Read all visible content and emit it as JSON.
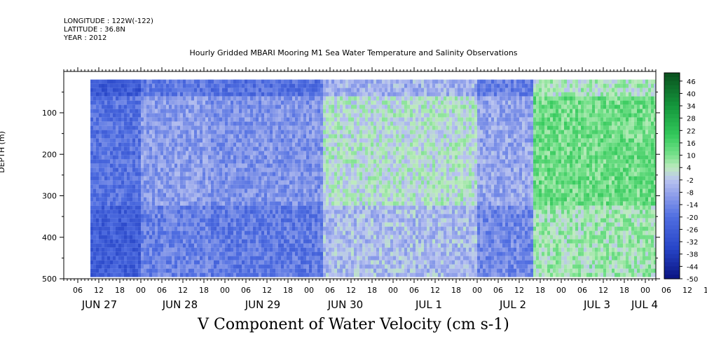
{
  "header": {
    "longitude": "LONGITUDE : 122W(-122)",
    "latitude": "LATITUDE : 36.8N",
    "year": "YEAR : 2012"
  },
  "chart_data": {
    "type": "heatmap",
    "title": "Hourly Gridded MBARI Mooring M1 Sea Water Temperature and Salinity Observations",
    "bottom_title": "V Component of Water Velocity (cm s-1)",
    "ylabel": "DEPTH (m)",
    "y_ticks": [
      100,
      200,
      300,
      400,
      500
    ],
    "ylim": [
      500,
      0
    ],
    "y_reversed": true,
    "x_hour_ticks": [
      "06",
      "12",
      "18",
      "00",
      "06",
      "12",
      "18",
      "00",
      "06",
      "12",
      "18",
      "00",
      "06",
      "12",
      "18",
      "00",
      "06",
      "12",
      "18",
      "00",
      "06",
      "12",
      "18",
      "00",
      "06",
      "12",
      "18",
      "00",
      "06",
      "12",
      "18",
      "00"
    ],
    "x_day_labels": [
      "JUN 27",
      "JUN 28",
      "JUN 29",
      "JUN 30",
      "JUL 1",
      "JUL 2",
      "JUL 3",
      "JUL 4"
    ],
    "x_range_hours": [
      0,
      175
    ],
    "data_depth_range": [
      20,
      490
    ],
    "colorbar_labels": [
      "46",
      "40",
      "34",
      "28",
      "22",
      "16",
      "10",
      "4",
      "-2",
      "-8",
      "-14",
      "-20",
      "-26",
      "-32",
      "-38",
      "-44",
      "-50"
    ],
    "colorbar_range": [
      -50,
      50
    ],
    "colors": {
      "negative_strong": "#0a1a8c",
      "negative": "#3d5fd6",
      "negative_weak": "#9aa6e8",
      "near_zero": "#b8e8b8",
      "positive_weak": "#6ae08a",
      "positive": "#2ec85a",
      "positive_strong": "#0a5a1e"
    },
    "field_description_bands": [
      {
        "hour_start": 0,
        "hour_end": 14,
        "v": -20
      },
      {
        "hour_start": 14,
        "hour_end": 24,
        "v": -10
      },
      {
        "hour_start": 24,
        "hour_end": 40,
        "v": -12
      },
      {
        "hour_start": 40,
        "hour_end": 62,
        "v": 2
      },
      {
        "hour_start": 62,
        "hour_end": 70,
        "v": -8
      },
      {
        "hour_start": 70,
        "hour_end": 90,
        "v": 12
      },
      {
        "hour_start": 90,
        "hour_end": 96,
        "v": -4
      },
      {
        "hour_start": 96,
        "hour_end": 115,
        "v": 14
      },
      {
        "hour_start": 115,
        "hour_end": 126,
        "v": 6
      },
      {
        "hour_start": 126,
        "hour_end": 142,
        "v": 10
      },
      {
        "hour_start": 142,
        "hour_end": 160,
        "v": -14
      },
      {
        "hour_start": 160,
        "hour_end": 170,
        "v": 4
      },
      {
        "hour_start": 170,
        "hour_end": 175,
        "v": -6
      }
    ]
  }
}
